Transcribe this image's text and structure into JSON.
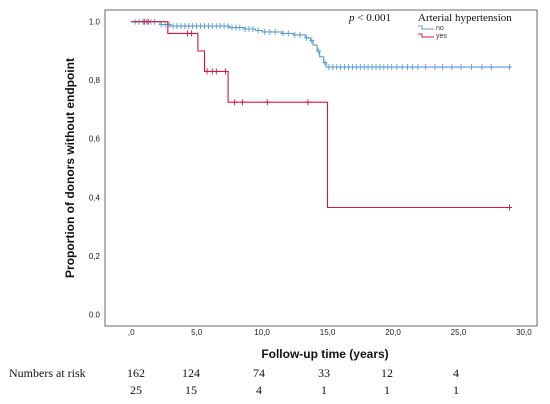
{
  "chart_data": {
    "type": "line",
    "subtype": "kaplan-meier",
    "xlabel": "Follow-up time (years)",
    "ylabel": "Proportion of donors without endpoint",
    "xlim": [
      -2,
      31
    ],
    "ylim": [
      -0.04,
      1.04
    ],
    "x_ticks": [
      0,
      5,
      10,
      15,
      20,
      25,
      30
    ],
    "x_tick_labels": [
      ",0",
      "5,0",
      "10,0",
      "15,0",
      "20,0",
      "25,0",
      "30,0"
    ],
    "y_ticks": [
      0,
      0.2,
      0.4,
      0.6,
      0.8,
      1.0
    ],
    "y_tick_labels": [
      "0.0",
      "0,2",
      "0,4",
      "0,6",
      "0,8",
      "1.0"
    ],
    "grid": false,
    "p_value_prefix": "p",
    "p_value_rest": " < 0.001",
    "legend": {
      "title": "Arterial hypertension",
      "placement": "top-right"
    },
    "series": [
      {
        "name": "no",
        "color": "#5b9bd5",
        "steps": [
          [
            0,
            1.0
          ],
          [
            2.2,
            0.99
          ],
          [
            3.0,
            0.985
          ],
          [
            7.5,
            0.98
          ],
          [
            8.6,
            0.975
          ],
          [
            9.5,
            0.97
          ],
          [
            10.0,
            0.965
          ],
          [
            11.5,
            0.96
          ],
          [
            12.4,
            0.955
          ],
          [
            13.3,
            0.945
          ],
          [
            13.7,
            0.935
          ],
          [
            13.9,
            0.92
          ],
          [
            14.2,
            0.9
          ],
          [
            14.4,
            0.88
          ],
          [
            14.7,
            0.86
          ],
          [
            14.9,
            0.845
          ],
          [
            29,
            0.845
          ]
        ],
        "censored_x": [
          0.3,
          0.6,
          0.9,
          1.2,
          1.5,
          1.8,
          2.3,
          2.6,
          2.9,
          3.2,
          3.5,
          3.8,
          4.1,
          4.4,
          4.7,
          5.0,
          5.3,
          5.6,
          5.9,
          6.2,
          6.5,
          6.8,
          7.1,
          7.4,
          7.7,
          8.0,
          8.3,
          8.7,
          9.0,
          9.3,
          9.7,
          10.2,
          10.6,
          11.0,
          11.6,
          12.0,
          12.5,
          12.9,
          13.4,
          13.8,
          14.3,
          14.8,
          15.1,
          15.4,
          15.7,
          16.0,
          16.3,
          16.6,
          16.9,
          17.2,
          17.5,
          17.8,
          18.1,
          18.4,
          18.7,
          19.0,
          19.3,
          19.6,
          19.9,
          20.3,
          20.7,
          21.1,
          21.5,
          21.9,
          22.5,
          23.2,
          23.8,
          24.5,
          25.2,
          26.0,
          26.8,
          27.5,
          28.9
        ]
      },
      {
        "name": "yes",
        "color": "#dc143c",
        "steps": [
          [
            0,
            1.0
          ],
          [
            2.8,
            0.96
          ],
          [
            5.1,
            0.9
          ],
          [
            5.6,
            0.83
          ],
          [
            7.4,
            0.725
          ],
          [
            14.9,
            0.725
          ],
          [
            15.0,
            0.365
          ],
          [
            29,
            0.365
          ]
        ],
        "censored_x": [
          1.0,
          1.3,
          4.3,
          4.6,
          5.8,
          6.2,
          6.5,
          7.2,
          7.9,
          8.5,
          10.4,
          13.5,
          28.9
        ]
      }
    ],
    "numbers_at_risk": {
      "label": "Numbers at risk",
      "rows": [
        {
          "group": "no",
          "values": [
            "162",
            "124",
            "74",
            "33",
            "12",
            "4"
          ]
        },
        {
          "group": "yes",
          "values": [
            "25",
            "15",
            "4",
            "1",
            "1",
            "1"
          ]
        }
      ]
    }
  }
}
